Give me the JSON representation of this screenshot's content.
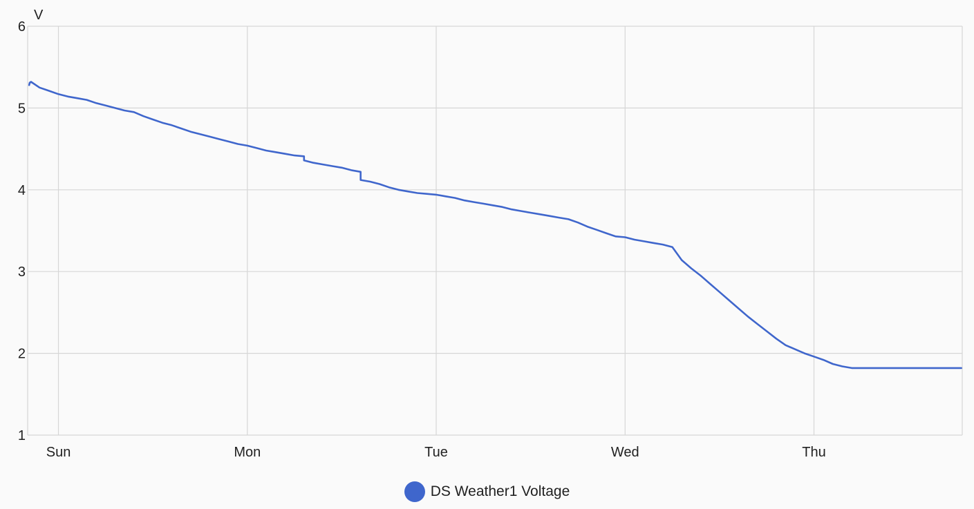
{
  "chart_data": {
    "type": "line",
    "ylabel": "V",
    "ylim": [
      1,
      6
    ],
    "yticks": [
      1,
      2,
      3,
      4,
      5,
      6
    ],
    "xrange": [
      -0.163,
      4.785
    ],
    "xticks": [
      {
        "label": "Sun",
        "value": 0
      },
      {
        "label": "Mon",
        "value": 1
      },
      {
        "label": "Tue",
        "value": 2
      },
      {
        "label": "Wed",
        "value": 3
      },
      {
        "label": "Thu",
        "value": 4
      }
    ],
    "grid": true,
    "legend_position": "bottom-center",
    "series": [
      {
        "name": "DS Weather1 Voltage",
        "color": "#3f66cc",
        "x": [
          -0.155,
          -0.152,
          -0.145,
          -0.1,
          -0.05,
          0.0,
          0.05,
          0.1,
          0.15,
          0.2,
          0.25,
          0.3,
          0.35,
          0.4,
          0.45,
          0.5,
          0.55,
          0.6,
          0.65,
          0.7,
          0.75,
          0.8,
          0.85,
          0.9,
          0.95,
          1.0,
          1.05,
          1.1,
          1.15,
          1.2,
          1.25,
          1.3,
          1.3,
          1.35,
          1.4,
          1.45,
          1.5,
          1.55,
          1.6,
          1.6,
          1.65,
          1.7,
          1.75,
          1.8,
          1.85,
          1.9,
          1.95,
          2.0,
          2.05,
          2.1,
          2.15,
          2.2,
          2.25,
          2.3,
          2.35,
          2.4,
          2.45,
          2.5,
          2.55,
          2.6,
          2.65,
          2.7,
          2.75,
          2.8,
          2.85,
          2.9,
          2.95,
          3.0,
          3.05,
          3.1,
          3.15,
          3.2,
          3.25,
          3.3,
          3.35,
          3.4,
          3.45,
          3.5,
          3.55,
          3.6,
          3.65,
          3.7,
          3.75,
          3.8,
          3.85,
          3.9,
          3.95,
          4.0,
          4.05,
          4.1,
          4.15,
          4.2,
          4.225,
          4.25,
          4.3,
          4.4,
          4.5,
          4.6,
          4.7,
          4.78
        ],
        "y": [
          5.28,
          5.31,
          5.32,
          5.25,
          5.21,
          5.17,
          5.14,
          5.12,
          5.1,
          5.06,
          5.03,
          5.0,
          4.97,
          4.95,
          4.9,
          4.86,
          4.82,
          4.79,
          4.75,
          4.71,
          4.68,
          4.65,
          4.62,
          4.59,
          4.56,
          4.54,
          4.51,
          4.48,
          4.46,
          4.44,
          4.42,
          4.41,
          4.36,
          4.33,
          4.31,
          4.29,
          4.27,
          4.24,
          4.22,
          4.12,
          4.1,
          4.07,
          4.03,
          4.0,
          3.98,
          3.96,
          3.95,
          3.94,
          3.92,
          3.9,
          3.87,
          3.85,
          3.83,
          3.81,
          3.79,
          3.76,
          3.74,
          3.72,
          3.7,
          3.68,
          3.66,
          3.64,
          3.6,
          3.55,
          3.51,
          3.47,
          3.43,
          3.42,
          3.39,
          3.37,
          3.35,
          3.33,
          3.3,
          3.14,
          3.04,
          2.95,
          2.85,
          2.75,
          2.65,
          2.55,
          2.45,
          2.36,
          2.27,
          2.18,
          2.1,
          2.05,
          2.0,
          1.96,
          1.92,
          1.87,
          1.84,
          1.82,
          1.82,
          1.82,
          1.82,
          1.82,
          1.82,
          1.82,
          1.82,
          1.82
        ]
      }
    ]
  }
}
